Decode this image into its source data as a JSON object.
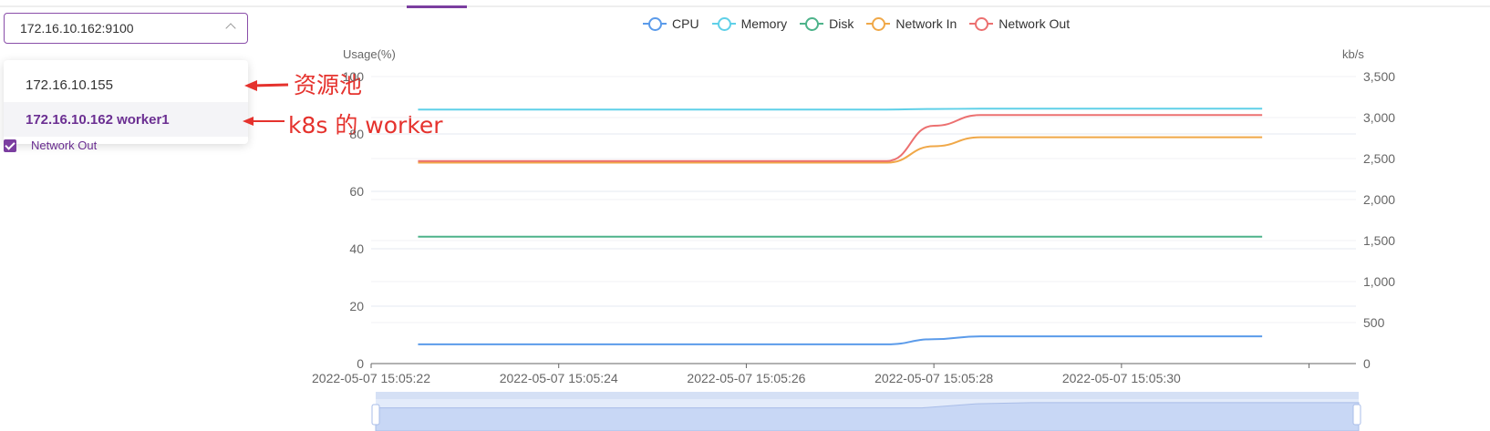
{
  "selector": {
    "value": "172.16.10.162:9100"
  },
  "dropdown": {
    "items": [
      "172.16.10.155",
      "172.16.10.162 worker1"
    ]
  },
  "checkbox": {
    "label": "Network Out"
  },
  "annotations": {
    "resource_pool": "资源池",
    "k8s_worker": "k8s 的 worker"
  },
  "accent_color": "#7b3ea0",
  "annotation_color": "#e5322d",
  "chart_data": {
    "type": "line",
    "legend": [
      {
        "name": "CPU",
        "color": "#5b9bea"
      },
      {
        "name": "Memory",
        "color": "#5fd0e8"
      },
      {
        "name": "Disk",
        "color": "#4db38a"
      },
      {
        "name": "Network In",
        "color": "#f0a848"
      },
      {
        "name": "Network Out",
        "color": "#ec7070"
      }
    ],
    "y_left_label": "Usage(%)",
    "y_right_label": "kb/s",
    "y_left_ticks": [
      "0",
      "20",
      "40",
      "60",
      "80",
      "100"
    ],
    "y_right_ticks": [
      "0",
      "500",
      "1,000",
      "1,500",
      "2,000",
      "2,500",
      "3,000",
      "3,500"
    ],
    "x_ticks": [
      "2022-05-07 15:05:22",
      "2022-05-07 15:05:24",
      "2022-05-07 15:05:26",
      "2022-05-07 15:05:28",
      "2022-05-07 15:05:30"
    ],
    "ylim_left": [
      0,
      100
    ],
    "ylim_right": [
      0,
      3500
    ],
    "x_seconds": [
      22.5,
      23,
      23.5,
      24,
      24.5,
      25,
      25.5,
      26,
      26.5,
      27,
      27.5,
      28,
      28.5,
      29,
      29.5,
      30,
      30.5,
      31,
      31.5
    ],
    "series": [
      {
        "name": "CPU",
        "axis": "left",
        "color": "#5b9bea",
        "values": [
          6.7,
          6.7,
          6.7,
          6.7,
          6.7,
          6.7,
          6.7,
          6.7,
          6.7,
          6.7,
          6.7,
          8.5,
          9.5,
          9.5,
          9.5,
          9.5,
          9.5,
          9.5,
          9.5
        ]
      },
      {
        "name": "Memory",
        "axis": "left",
        "color": "#5fd0e8",
        "values": [
          88.5,
          88.5,
          88.5,
          88.5,
          88.5,
          88.5,
          88.5,
          88.5,
          88.5,
          88.5,
          88.5,
          88.7,
          88.8,
          88.8,
          88.8,
          88.8,
          88.8,
          88.8,
          88.8
        ]
      },
      {
        "name": "Disk",
        "axis": "left",
        "color": "#4db38a",
        "values": [
          44.2,
          44.2,
          44.2,
          44.2,
          44.2,
          44.2,
          44.2,
          44.2,
          44.2,
          44.2,
          44.2,
          44.2,
          44.2,
          44.2,
          44.2,
          44.2,
          44.2,
          44.2,
          44.2
        ]
      },
      {
        "name": "Network In",
        "axis": "right",
        "color": "#f0a848",
        "values": [
          2450,
          2450,
          2450,
          2450,
          2450,
          2450,
          2450,
          2450,
          2450,
          2450,
          2450,
          2650,
          2760,
          2760,
          2760,
          2760,
          2760,
          2760,
          2760
        ]
      },
      {
        "name": "Network Out",
        "axis": "right",
        "color": "#ec7070",
        "values": [
          2470,
          2470,
          2470,
          2470,
          2470,
          2470,
          2470,
          2470,
          2470,
          2470,
          2470,
          2900,
          3030,
          3030,
          3030,
          3030,
          3030,
          3030,
          3030
        ]
      }
    ]
  }
}
